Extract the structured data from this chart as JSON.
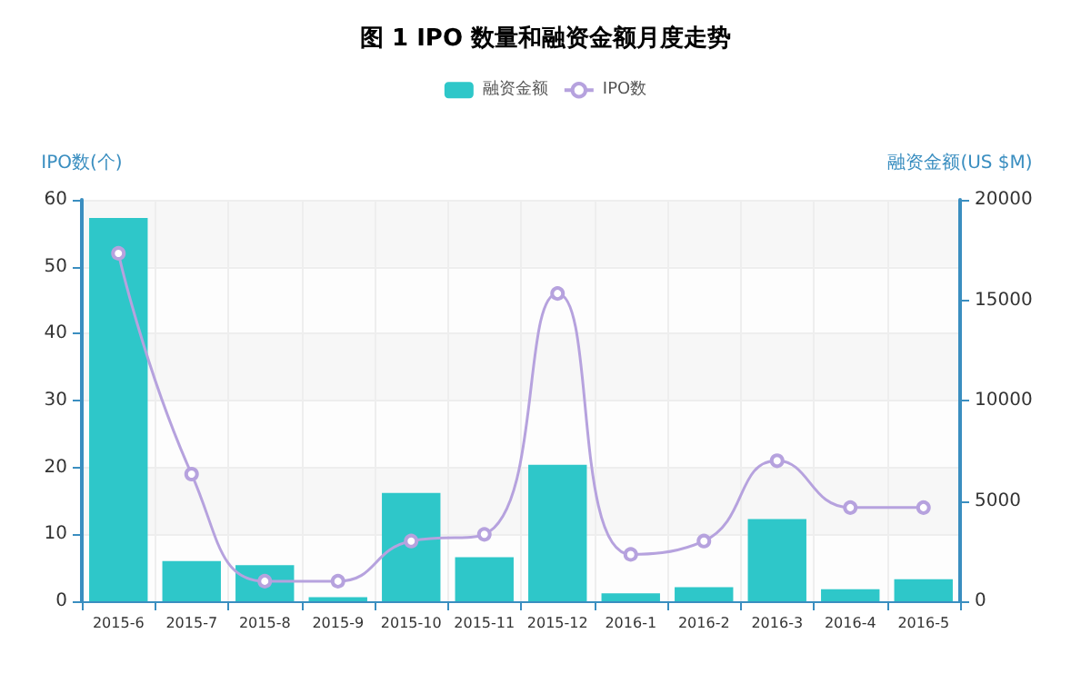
{
  "chart_data": {
    "type": "bar",
    "title": "图 1 IPO 数量和融资金额月度走势",
    "ylabel": "IPO数(个)",
    "y2label": "融资金额(US $M)",
    "categories": [
      "2015-6",
      "2015-7",
      "2015-8",
      "2015-9",
      "2015-10",
      "2015-11",
      "2015-12",
      "2016-1",
      "2016-2",
      "2016-3",
      "2016-4",
      "2016-5"
    ],
    "series": [
      {
        "name": "融资金额",
        "axis": "y2",
        "color": "#2ec7c9",
        "values": [
          19100,
          2000,
          1800,
          200,
          5400,
          2200,
          6800,
          400,
          700,
          4100,
          600,
          1100
        ]
      },
      {
        "name": "IPO数",
        "type": "line",
        "color": "#b6a2de",
        "marker": "circle",
        "values": [
          52,
          19,
          3,
          3,
          9,
          10,
          46,
          7,
          9,
          21,
          14,
          14
        ]
      }
    ],
    "ylim": [
      0,
      60
    ],
    "yticks": [
      0,
      10,
      20,
      30,
      40,
      50,
      60
    ],
    "y2lim": [
      0,
      20000
    ],
    "y2ticks": [
      0,
      5000,
      10000,
      15000,
      20000
    ],
    "grid": true,
    "legend": "top"
  }
}
